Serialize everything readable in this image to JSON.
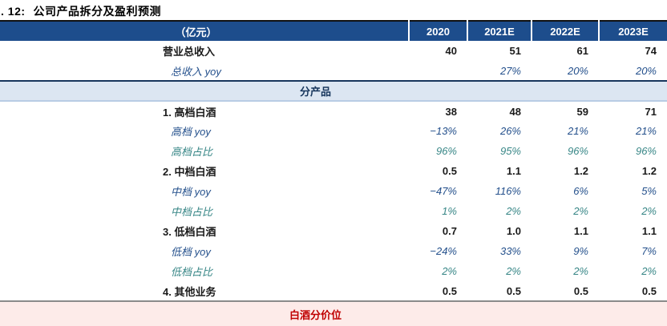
{
  "title": {
    "figure_label": ". 12:",
    "text": "公司产品拆分及盈利预测"
  },
  "table": {
    "unit_header": "（亿元）",
    "columns": [
      "2020",
      "2021E",
      "2022E",
      "2023E"
    ],
    "rows": [
      {
        "type": "data",
        "style": "product",
        "label": "营业总收入",
        "values": [
          "40",
          "51",
          "61",
          "74"
        ]
      },
      {
        "type": "data",
        "style": "yoy",
        "label": "总收入 yoy",
        "values": [
          "",
          "27%",
          "20%",
          "20%"
        ]
      },
      {
        "type": "section",
        "variant": "blue",
        "label": "分产品"
      },
      {
        "type": "data",
        "style": "product",
        "label": "1. 高档白酒",
        "values": [
          "38",
          "48",
          "59",
          "71"
        ]
      },
      {
        "type": "data",
        "style": "yoy",
        "label": "高档 yoy",
        "values": [
          "−13%",
          "26%",
          "21%",
          "21%"
        ]
      },
      {
        "type": "data",
        "style": "share",
        "label": "高档占比",
        "values": [
          "96%",
          "95%",
          "96%",
          "96%"
        ]
      },
      {
        "type": "data",
        "style": "product",
        "label": "2. 中档白酒",
        "values": [
          "0.5",
          "1.1",
          "1.2",
          "1.2"
        ]
      },
      {
        "type": "data",
        "style": "yoy",
        "label": "中档 yoy",
        "values": [
          "−47%",
          "116%",
          "6%",
          "5%"
        ]
      },
      {
        "type": "data",
        "style": "share",
        "label": "中档占比",
        "values": [
          "1%",
          "2%",
          "2%",
          "2%"
        ]
      },
      {
        "type": "data",
        "style": "product",
        "label": "3. 低档白酒",
        "values": [
          "0.7",
          "1.0",
          "1.1",
          "1.1"
        ]
      },
      {
        "type": "data",
        "style": "yoy",
        "label": "低档 yoy",
        "values": [
          "−24%",
          "33%",
          "9%",
          "7%"
        ]
      },
      {
        "type": "data",
        "style": "share",
        "label": "低档占比",
        "values": [
          "2%",
          "2%",
          "2%",
          "2%"
        ]
      },
      {
        "type": "data",
        "style": "product",
        "label": "4. 其他业务",
        "values": [
          "0.5",
          "0.5",
          "0.5",
          "0.5"
        ]
      },
      {
        "type": "section",
        "variant": "pink",
        "label": "白酒分价位"
      }
    ],
    "colors": {
      "header_bg": "#1d4d8c",
      "header_text": "#ffffff",
      "product_text": "#1a1a1a",
      "yoy_text": "#24508c",
      "share_text": "#378686",
      "section_blue_bg": "#dce6f2",
      "section_blue_text": "#17365d",
      "section_pink_bg": "#fdebe9",
      "section_pink_text": "#c00000"
    }
  }
}
